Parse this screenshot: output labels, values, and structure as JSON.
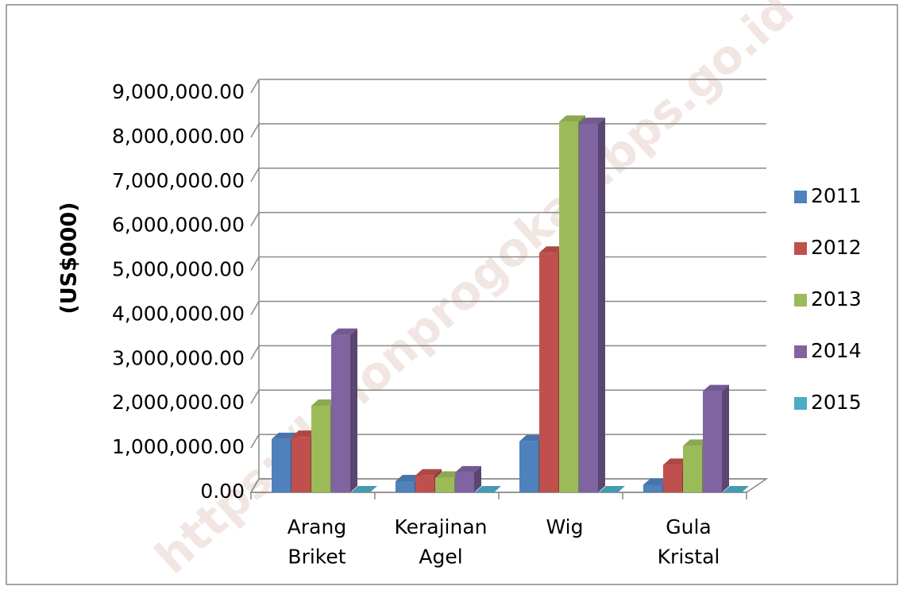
{
  "chart_data": {
    "type": "bar3d",
    "y_axis_label": "(US$000)",
    "watermark": "https://kulonprogokab.bps.go.id",
    "categories": [
      "Arang\nBriket",
      "Kerajinan\nAgel",
      "Wig",
      "Gula\nKristal"
    ],
    "series": [
      {
        "name": "2011",
        "color": "#4f81bd",
        "values": [
          1200000,
          250000,
          1150000,
          170000
        ]
      },
      {
        "name": "2012",
        "color": "#c0504d",
        "values": [
          1250000,
          380000,
          5400000,
          620000
        ]
      },
      {
        "name": "2013",
        "color": "#9bbb59",
        "values": [
          1950000,
          330000,
          8350000,
          1050000
        ]
      },
      {
        "name": "2014",
        "color": "#8064a2",
        "values": [
          3550000,
          450000,
          8300000,
          2280000
        ]
      },
      {
        "name": "2015",
        "color": "#4bacc6",
        "values": [
          0,
          0,
          0,
          0
        ]
      }
    ],
    "ylim": [
      0,
      9000000
    ],
    "yticks": [
      {
        "value": 0,
        "label": "0.00"
      },
      {
        "value": 1000000,
        "label": "1,000,000.00"
      },
      {
        "value": 2000000,
        "label": "2,000,000.00"
      },
      {
        "value": 3000000,
        "label": "3,000,000.00"
      },
      {
        "value": 4000000,
        "label": "4,000,000.00"
      },
      {
        "value": 5000000,
        "label": "5,000,000.00"
      },
      {
        "value": 6000000,
        "label": "6,000,000.00"
      },
      {
        "value": 7000000,
        "label": "7,000,000.00"
      },
      {
        "value": 8000000,
        "label": "8,000,000.00"
      },
      {
        "value": 9000000,
        "label": "9,000,000.00"
      }
    ],
    "grid": true,
    "legend": "right"
  }
}
